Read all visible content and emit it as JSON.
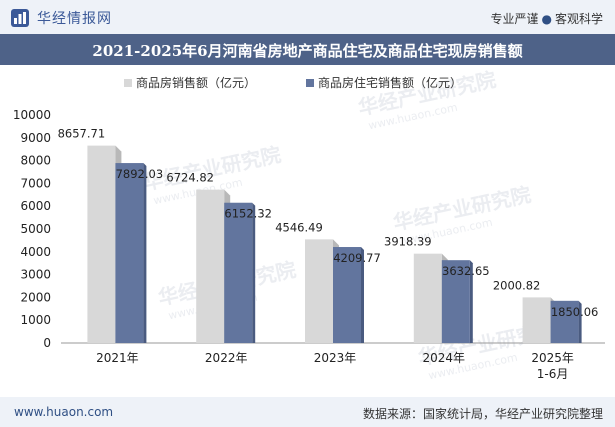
{
  "brand": {
    "name": "华经情报网"
  },
  "tagline": {
    "left": "专业严谨",
    "right": "客观科学"
  },
  "footer": {
    "url": "www.huaon.com",
    "source": "数据来源：国家统计局，华经产业研究院整理"
  },
  "watermark": {
    "text": "华经产业研究院",
    "url": "www.huaon.com"
  },
  "colors": {
    "series1": "#d8d8d8",
    "series2": "#62759e",
    "titlebar": "#4e6288",
    "brand": "#3b5998"
  },
  "chart_data": {
    "type": "bar",
    "title": "2021-2025年6月河南省房地产商品住宅及商品住宅现房销售额",
    "categories": [
      "2021年",
      "2022年",
      "2023年",
      "2024年",
      "2025年\n1-6月"
    ],
    "series": [
      {
        "name": "商品房销售额（亿元）",
        "values": [
          8657.71,
          6724.82,
          4546.49,
          3918.39,
          2000.82
        ]
      },
      {
        "name": "商品房住宅销售额（亿元）",
        "values": [
          7892.03,
          6152.32,
          4209.77,
          3632.65,
          1850.06
        ]
      }
    ],
    "ylim": [
      0,
      10000
    ],
    "yticks": [
      0,
      1000,
      2000,
      3000,
      4000,
      5000,
      6000,
      7000,
      8000,
      9000,
      10000
    ],
    "legend": "top",
    "grid": false
  }
}
